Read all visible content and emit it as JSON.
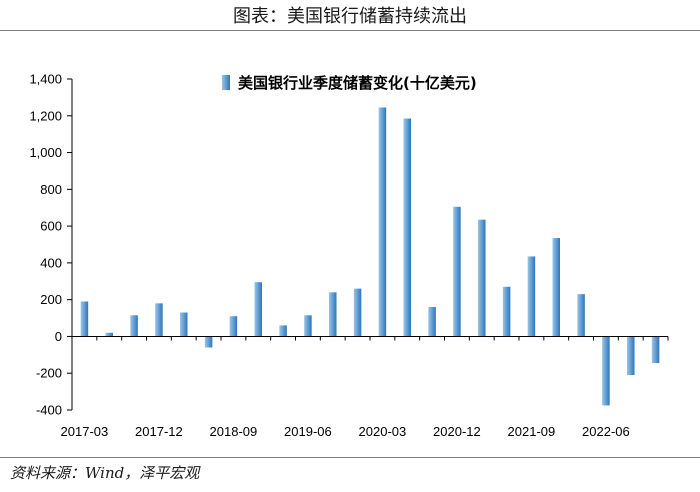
{
  "header": {
    "title": "图表：美国银行储蓄持续流出"
  },
  "source": "资料来源：Wind，泽平宏观",
  "colors": {
    "bar_light": "#9dc3e6",
    "bar_dark": "#2e75b6",
    "axis": "#000000"
  },
  "chart_data": {
    "type": "bar",
    "title": "",
    "legend": {
      "position": "top",
      "entries": [
        "美国银行业季度储蓄变化(十亿美元)"
      ]
    },
    "series": [
      {
        "name": "美国银行业季度储蓄变化(十亿美元)",
        "values": [
          190,
          20,
          115,
          180,
          130,
          -60,
          110,
          295,
          60,
          115,
          240,
          260,
          1245,
          1185,
          160,
          705,
          635,
          270,
          435,
          535,
          230,
          -375,
          -210,
          -145
        ]
      }
    ],
    "categories": [
      "2017-03",
      "2017-06",
      "2017-09",
      "2017-12",
      "2018-03",
      "2018-06",
      "2018-09",
      "2018-12",
      "2019-03",
      "2019-06",
      "2019-09",
      "2019-12",
      "2020-03",
      "2020-06",
      "2020-09",
      "2020-12",
      "2021-03",
      "2021-06",
      "2021-09",
      "2021-12",
      "2022-03",
      "2022-06",
      "2022-09",
      "2022-12"
    ],
    "x_tick_labels": [
      "2017-03",
      "2017-12",
      "2018-09",
      "2019-06",
      "2020-03",
      "2020-12",
      "2021-09",
      "2022-06"
    ],
    "ylim": [
      -400,
      1400
    ],
    "y_ticks": [
      "-400",
      "-200",
      "0",
      "200",
      "400",
      "600",
      "800",
      "1,000",
      "1,200",
      "1,400"
    ],
    "y_tick_values": [
      -400,
      -200,
      0,
      200,
      400,
      600,
      800,
      1000,
      1200,
      1400
    ],
    "grid": false,
    "xlabel": "",
    "ylabel": ""
  }
}
